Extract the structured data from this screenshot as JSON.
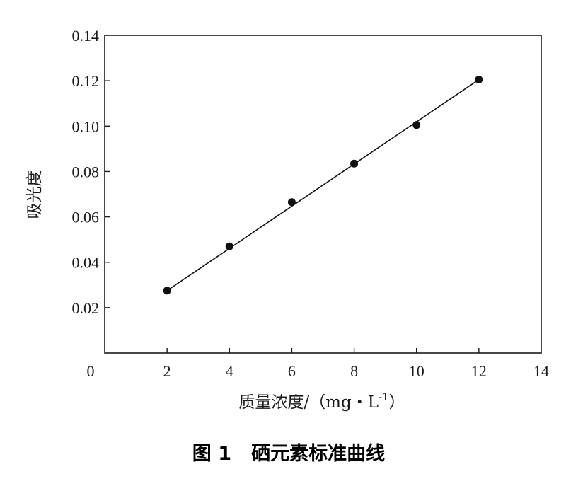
{
  "chart_data": {
    "type": "scatter",
    "caption": "图 1   硒元素标准曲线",
    "xlabel_main": "质量浓度/（mg・L",
    "xlabel_sup": "-1",
    "xlabel_close": "）",
    "ylabel": "吸光度",
    "xlim": [
      0,
      14
    ],
    "ylim": [
      0,
      0.14
    ],
    "x_ticks": [
      0,
      2,
      4,
      6,
      8,
      10,
      12,
      14
    ],
    "x_tick_labels": [
      "0",
      "2",
      "4",
      "6",
      "8",
      "10",
      "12",
      "14"
    ],
    "y_ticks": [
      0.02,
      0.04,
      0.06,
      0.08,
      0.1,
      0.12,
      0.14
    ],
    "y_tick_labels": [
      "0.02",
      "0.04",
      "0.06",
      "0.08",
      "0.10",
      "0.12",
      "0.14"
    ],
    "series": [
      {
        "x": [
          2,
          4,
          6,
          8,
          10,
          12
        ],
        "y": [
          0.0275,
          0.047,
          0.0665,
          0.0835,
          0.1005,
          0.1205
        ]
      }
    ],
    "fit_line": {
      "x": [
        2,
        12
      ],
      "y": [
        0.0275,
        0.1205
      ]
    },
    "grid": false,
    "legend": "none",
    "colors": {
      "marker": "#111111",
      "line": "#111111",
      "axis": "#1a1a1a"
    }
  }
}
